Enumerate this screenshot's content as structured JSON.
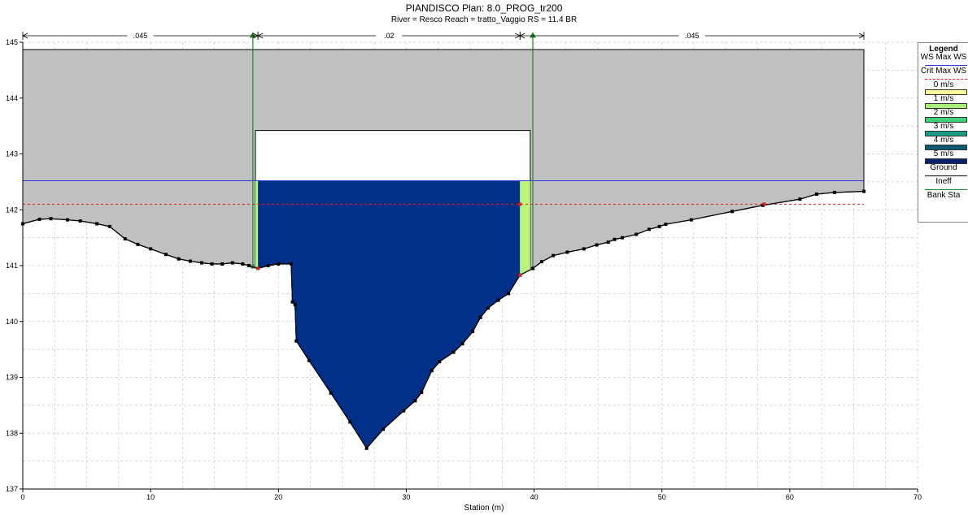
{
  "title": {
    "line1": "PIANDISCO       Plan: 8.0_PROG_tr200",
    "line2": "River = Resco   Reach = tratto_Vaggio      RS = 11.4     BR"
  },
  "chart_data": {
    "type": "area",
    "xlabel": "Station (m)",
    "ylabel": "",
    "xlim": [
      0,
      70
    ],
    "ylim": [
      137,
      145
    ],
    "x_ticks": [
      0,
      10,
      20,
      30,
      40,
      50,
      60,
      70
    ],
    "y_ticks": [
      137,
      138,
      139,
      140,
      141,
      142,
      143,
      144,
      145
    ],
    "grid": true,
    "legend_position": "right",
    "ws_max_elevation": 142.52,
    "crit_max_ws_elevation": 142.1,
    "bridge": {
      "deck_top": 144.87,
      "low_chord": 143.42,
      "opening_left": 18.2,
      "opening_right": 39.7,
      "deck_extent": [
        0,
        65.8
      ]
    },
    "ineffective_stations": [
      18.0,
      39.9
    ],
    "bank_stations": [
      18.4,
      38.9
    ],
    "manning_n": [
      {
        "from": 0,
        "to": 18.4,
        "label": ".045"
      },
      {
        "from": 18.4,
        "to": 38.9,
        "label": ".02"
      },
      {
        "from": 38.9,
        "to": 65.8,
        "label": ".045"
      }
    ],
    "velocity_bands": [
      {
        "label": "0 m/s",
        "color": "#ffff99"
      },
      {
        "label": "1 m/s",
        "color": "#a8f07a"
      },
      {
        "label": "2 m/s",
        "color": "#3ed17a"
      },
      {
        "label": "3 m/s",
        "color": "#1a9b86"
      },
      {
        "label": "4 m/s",
        "color": "#0f5a73"
      },
      {
        "label": "5 m/s",
        "color": "#06216b"
      }
    ],
    "colors": {
      "flow": "#003087",
      "overbank_velocity": "#b9f57a",
      "bridge": "#c0c0c0",
      "ws": "#2c3cd6",
      "crit": "#e02020",
      "ineff": "#1b8a1b"
    },
    "ground": {
      "x": [
        0,
        1.3,
        2.2,
        3.5,
        4.5,
        5.8,
        6.8,
        8,
        9,
        10,
        11.2,
        12.2,
        13.1,
        14,
        14.8,
        15.6,
        16.4,
        17.2,
        17.7,
        18.4,
        19.2,
        20,
        21,
        21.1,
        21.3,
        21.4,
        22.4,
        24.1,
        25.6,
        26.9,
        28.2,
        29.8,
        30.7,
        31.2,
        32,
        32.6,
        33.7,
        34.4,
        35.2,
        35.8,
        36.4,
        37.2,
        38,
        38.9,
        39.9,
        40.6,
        41.5,
        42.6,
        43.9,
        44.9,
        45.8,
        46.3,
        46.9,
        48,
        49,
        49.8,
        50.3,
        52.3,
        55.5,
        57.9,
        60.8,
        62.1,
        63.5,
        65.8
      ],
      "y": [
        141.75,
        141.83,
        141.84,
        141.82,
        141.8,
        141.75,
        141.7,
        141.48,
        141.38,
        141.3,
        141.2,
        141.12,
        141.08,
        141.05,
        141.03,
        141.03,
        141.05,
        141.03,
        141.0,
        140.95,
        141.0,
        141.03,
        141.03,
        140.35,
        140.3,
        139.65,
        139.3,
        138.72,
        138.2,
        137.73,
        138.07,
        138.4,
        138.58,
        138.73,
        139.12,
        139.28,
        139.45,
        139.6,
        139.82,
        140.07,
        140.24,
        140.38,
        140.5,
        140.83,
        140.95,
        141.07,
        141.18,
        141.24,
        141.3,
        141.37,
        141.42,
        141.47,
        141.5,
        141.56,
        141.65,
        141.7,
        141.74,
        141.82,
        141.97,
        142.08,
        142.19,
        142.28,
        142.31,
        142.33
      ]
    }
  },
  "legend": {
    "title": "Legend",
    "items": [
      {
        "label": "WS Max WS"
      },
      {
        "label": "Crit Max WS"
      },
      {
        "label": "0 m/s"
      },
      {
        "label": "1 m/s"
      },
      {
        "label": "2 m/s"
      },
      {
        "label": "3 m/s"
      },
      {
        "label": "4 m/s"
      },
      {
        "label": "5 m/s"
      },
      {
        "label": "Ground"
      },
      {
        "label": "Ineff"
      },
      {
        "label": "Bank Sta"
      }
    ]
  }
}
